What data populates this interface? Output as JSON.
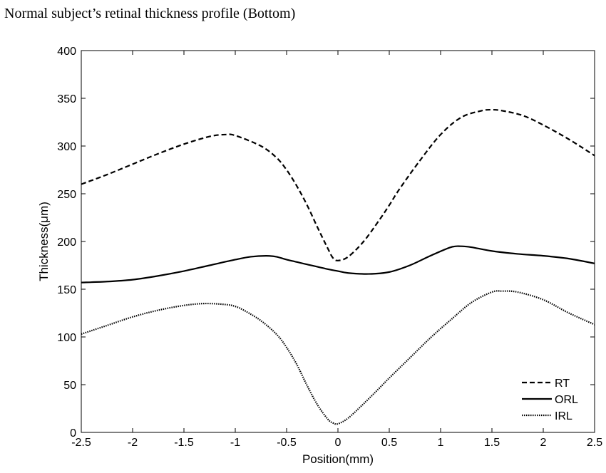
{
  "page": {
    "title": "Normal subject’s retinal thickness profile (Bottom)"
  },
  "chart_data": {
    "type": "line",
    "xlabel": "Position(mm)",
    "ylabel": "Thickness(μm)",
    "xlim": [
      -2.5,
      2.5
    ],
    "ylim": [
      0,
      400
    ],
    "xticks": [
      -2.5,
      -2,
      -1.5,
      -1,
      -0.5,
      0,
      0.5,
      1,
      1.5,
      2,
      2.5
    ],
    "xtick_labels": [
      "-2.5",
      "-2",
      "-1.5",
      "-1",
      "-0.5",
      "0",
      "0.5",
      "1",
      "1.5",
      "2",
      "2.5"
    ],
    "yticks": [
      0,
      50,
      100,
      150,
      200,
      250,
      300,
      350,
      400
    ],
    "ytick_labels": [
      "0",
      "50",
      "100",
      "150",
      "200",
      "250",
      "300",
      "350",
      "400"
    ],
    "grid": false,
    "legend_position": "bottom-right",
    "series": [
      {
        "name": "RT",
        "style": "dashed",
        "color": "#000000",
        "x": [
          -2.5,
          -2.25,
          -2.0,
          -1.75,
          -1.5,
          -1.25,
          -1.1,
          -1.0,
          -0.75,
          -0.6,
          -0.5,
          -0.4,
          -0.3,
          -0.2,
          -0.1,
          -0.05,
          0.0,
          0.1,
          0.25,
          0.4,
          0.5,
          0.6,
          0.8,
          1.0,
          1.2,
          1.4,
          1.5,
          1.6,
          1.8,
          2.0,
          2.25,
          2.5
        ],
        "y": [
          260,
          270,
          281,
          292,
          302,
          310,
          312,
          311,
          300,
          288,
          275,
          258,
          238,
          215,
          193,
          183,
          180,
          184,
          200,
          222,
          238,
          255,
          285,
          312,
          330,
          337,
          338,
          337,
          332,
          322,
          307,
          290
        ]
      },
      {
        "name": "ORL",
        "style": "solid",
        "color": "#000000",
        "x": [
          -2.5,
          -2.25,
          -2.0,
          -1.75,
          -1.5,
          -1.25,
          -1.0,
          -0.85,
          -0.7,
          -0.6,
          -0.5,
          -0.3,
          -0.1,
          0.0,
          0.1,
          0.3,
          0.5,
          0.7,
          0.9,
          1.1,
          1.2,
          1.3,
          1.5,
          1.75,
          2.0,
          2.25,
          2.5
        ],
        "y": [
          157,
          158,
          160,
          164,
          169,
          175,
          181,
          184,
          185,
          184,
          181,
          176,
          171,
          169,
          167,
          166,
          168,
          175,
          185,
          194,
          195,
          194,
          190,
          187,
          185,
          182,
          177
        ]
      },
      {
        "name": "IRL",
        "style": "dotted",
        "color": "#000000",
        "x": [
          -2.5,
          -2.25,
          -2.0,
          -1.75,
          -1.5,
          -1.3,
          -1.1,
          -1.0,
          -0.9,
          -0.75,
          -0.6,
          -0.5,
          -0.4,
          -0.3,
          -0.2,
          -0.1,
          -0.05,
          0.0,
          0.1,
          0.25,
          0.4,
          0.5,
          0.7,
          0.9,
          1.1,
          1.3,
          1.5,
          1.6,
          1.75,
          2.0,
          2.25,
          2.5
        ],
        "y": [
          103,
          112,
          121,
          128,
          133,
          135,
          134,
          132,
          127,
          117,
          103,
          89,
          71,
          49,
          29,
          14,
          10,
          9,
          15,
          30,
          46,
          57,
          78,
          99,
          118,
          136,
          147,
          148,
          147,
          139,
          125,
          113
        ]
      }
    ]
  }
}
